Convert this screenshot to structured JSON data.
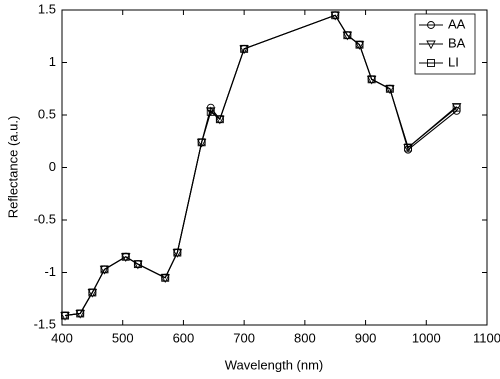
{
  "chart_data": {
    "type": "line",
    "x_label": "Wavelength (nm)",
    "y_label": "Reflectance (a.u.)",
    "x": [
      405,
      430,
      450,
      470,
      505,
      525,
      570,
      590,
      630,
      645,
      660,
      700,
      850,
      870,
      890,
      910,
      940,
      970,
      1050
    ],
    "series": [
      {
        "name": "AA",
        "color": "#000000",
        "marker": "circle",
        "values": [
          -1.41,
          -1.39,
          -1.19,
          -0.97,
          -0.85,
          -0.92,
          -1.05,
          -0.81,
          0.24,
          0.57,
          0.46,
          1.13,
          1.45,
          1.26,
          1.17,
          0.84,
          0.75,
          0.17,
          0.54
        ]
      },
      {
        "name": "BA",
        "color": "#000000",
        "marker": "triangle-down",
        "values": [
          -1.41,
          -1.39,
          -1.19,
          -0.97,
          -0.85,
          -0.92,
          -1.05,
          -0.81,
          0.24,
          0.54,
          0.46,
          1.13,
          1.45,
          1.26,
          1.17,
          0.84,
          0.75,
          0.19,
          0.58
        ]
      },
      {
        "name": "LI",
        "color": "#000000",
        "marker": "square",
        "values": [
          -1.41,
          -1.39,
          -1.19,
          -0.97,
          -0.85,
          -0.92,
          -1.05,
          -0.81,
          0.24,
          0.53,
          0.46,
          1.13,
          1.45,
          1.26,
          1.17,
          0.84,
          0.75,
          0.19,
          0.57
        ]
      }
    ],
    "xlim": [
      400,
      1100
    ],
    "xticks": [
      400,
      500,
      600,
      700,
      800,
      900,
      1000,
      1100
    ],
    "ylim": [
      -1.5,
      1.5
    ],
    "yticks": [
      -1.5,
      -1,
      -0.5,
      0,
      0.5,
      1,
      1.5
    ],
    "grid": false,
    "legend": "upper-right"
  }
}
